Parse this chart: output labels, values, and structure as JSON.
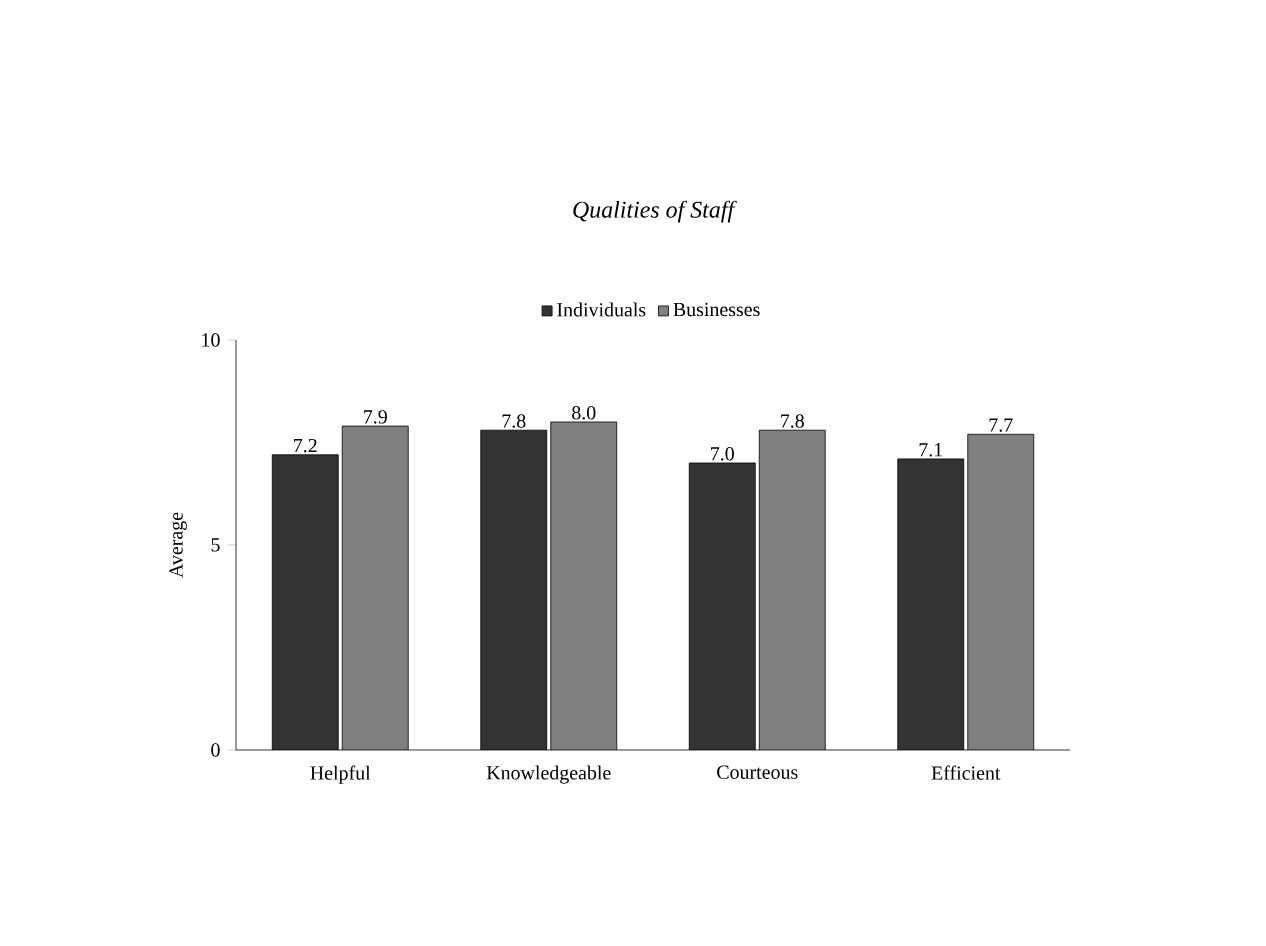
{
  "chart_data": {
    "type": "bar",
    "title": "Qualities of Staff",
    "ylabel": "Average",
    "categories": [
      "Helpful",
      "Knowledgeable",
      "Courteous",
      "Efficient"
    ],
    "series": [
      {
        "name": "Individuals",
        "color": "#333333",
        "values": [
          7.2,
          7.8,
          7.0,
          7.1
        ],
        "value_labels": [
          "7.2",
          "7.8",
          "7.0",
          "7.1"
        ]
      },
      {
        "name": "Businesses",
        "color": "#808080",
        "values": [
          7.9,
          8.0,
          7.8,
          7.7
        ],
        "value_labels": [
          "7.9",
          "8.0",
          "7.8",
          "7.7"
        ]
      }
    ],
    "ylim": [
      0,
      10
    ],
    "yticks": [
      0,
      5,
      10
    ],
    "legend": "top",
    "grid": false
  }
}
